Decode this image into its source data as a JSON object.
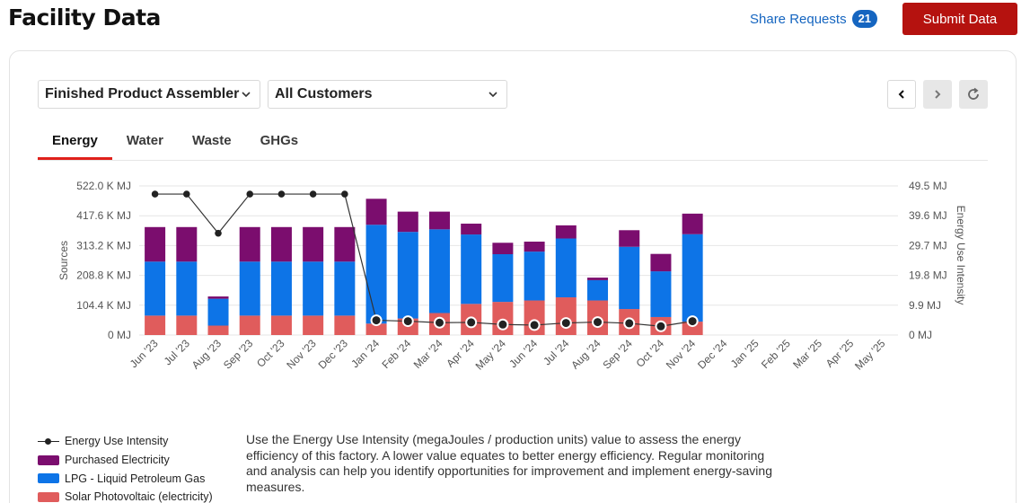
{
  "header": {
    "title": "Facility Data",
    "share_label": "Share Requests",
    "share_count": "21",
    "submit_label": "Submit Data"
  },
  "filters": {
    "facility": "Finished Product Assembler",
    "customer": "All Customers"
  },
  "tabs": [
    {
      "label": "Energy",
      "active": true
    },
    {
      "label": "Water",
      "active": false
    },
    {
      "label": "Waste",
      "active": false
    },
    {
      "label": "GHGs",
      "active": false
    }
  ],
  "description": "Use the Energy Use Intensity (megaJoules / production units) value to assess the energy efficiency of this factory. A lower value equates to better energy efficiency. Regular monitoring and analysis can help you identify opportunities for improvement and implement energy-saving measures.",
  "colors": {
    "purchased": "#7b0d6e",
    "lpg": "#0d74e7",
    "solar": "#e05c5c",
    "line": "#333333",
    "accent": "#b5120f"
  },
  "chart_data": {
    "type": "bar",
    "stacked": true,
    "categories": [
      "Jun '23",
      "Jul '23",
      "Aug '23",
      "Sep '23",
      "Oct '23",
      "Nov '23",
      "Dec '23",
      "Jan '24",
      "Feb '24",
      "Mar '24",
      "Apr '24",
      "May '24",
      "Jun '24",
      "Jul '24",
      "Aug '24",
      "Sep '24",
      "Oct '24",
      "Nov '24",
      "Dec '24",
      "Jan '25",
      "Feb '25",
      "Mar '25",
      "Apr '25",
      "May '25"
    ],
    "series": [
      {
        "name": "Solar Photovoltaic (electricity)",
        "color_key": "solar",
        "values": [
          68000,
          68000,
          33000,
          68000,
          68000,
          68000,
          68000,
          40000,
          58000,
          77000,
          109000,
          116000,
          121000,
          132000,
          121000,
          91000,
          63000,
          47000,
          null,
          null,
          null,
          null,
          null,
          null
        ]
      },
      {
        "name": "LPG - Liquid Petroleum Gas",
        "color_key": "lpg",
        "values": [
          189000,
          189000,
          94000,
          189000,
          189000,
          189000,
          189000,
          346000,
          303000,
          293000,
          243000,
          167000,
          171000,
          206000,
          71000,
          218000,
          160000,
          306000,
          null,
          null,
          null,
          null,
          null,
          null
        ]
      },
      {
        "name": "Purchased Electricity",
        "color_key": "purchased",
        "values": [
          121000,
          121000,
          8000,
          121000,
          121000,
          121000,
          121000,
          91000,
          71000,
          62000,
          38000,
          40000,
          35000,
          46000,
          9000,
          58000,
          61000,
          72000,
          null,
          null,
          null,
          null,
          null,
          null
        ]
      }
    ],
    "line_series": {
      "name": "Energy Use Intensity",
      "axis": "right",
      "values": [
        46.8,
        46.8,
        33.8,
        46.8,
        46.8,
        46.8,
        46.8,
        4.9,
        4.6,
        4.1,
        4.2,
        3.5,
        3.3,
        4.0,
        4.3,
        3.9,
        2.9,
        4.6,
        null,
        null,
        null,
        null,
        null,
        null
      ]
    },
    "y_left": {
      "label": "Sources",
      "min": 0,
      "max": 522000,
      "ticks": [
        "0 MJ",
        "104.4 K MJ",
        "208.8 K MJ",
        "313.2 K MJ",
        "417.6 K MJ",
        "522.0 K MJ"
      ]
    },
    "y_right": {
      "label": "Energy Use Intensity",
      "min": 0,
      "max": 49.5,
      "ticks": [
        "0 MJ",
        "9.9 MJ",
        "19.8 MJ",
        "29.7 MJ",
        "39.6 MJ",
        "49.5 MJ"
      ]
    },
    "legend": [
      {
        "label": "Energy Use Intensity",
        "kind": "line",
        "color_key": "line"
      },
      {
        "label": "Purchased Electricity",
        "kind": "bar",
        "color_key": "purchased"
      },
      {
        "label": "LPG - Liquid Petroleum Gas",
        "kind": "bar",
        "color_key": "lpg"
      },
      {
        "label": "Solar Photovoltaic (electricity)",
        "kind": "bar",
        "color_key": "solar"
      }
    ]
  }
}
